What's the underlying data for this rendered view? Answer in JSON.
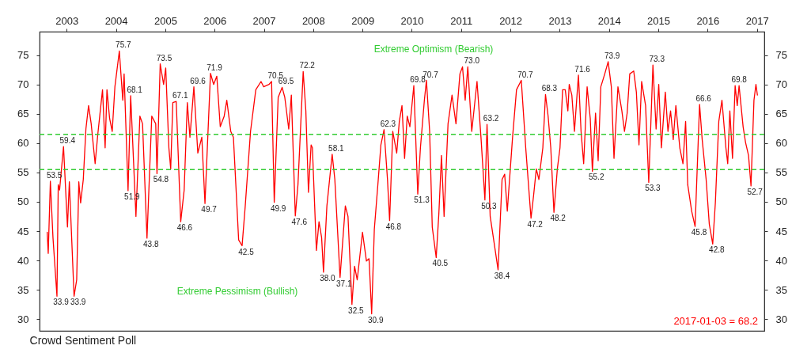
{
  "chart_data": {
    "type": "line",
    "title": "Crowd Sentiment Poll",
    "x": [
      2002.605,
      2002.626,
      2002.669,
      2002.722,
      2002.803,
      2002.829,
      2002.856,
      2002.936,
      2003.016,
      2003.054,
      2003.15,
      2003.203,
      2003.246,
      2003.283,
      2003.337,
      2003.39,
      2003.444,
      2003.497,
      2003.577,
      2003.631,
      2003.727,
      2003.78,
      2003.817,
      2003.871,
      2003.924,
      2003.978,
      2004.068,
      2004.138,
      2004.165,
      2004.245,
      2004.298,
      2004.405,
      2004.485,
      2004.539,
      2004.629,
      2004.726,
      2004.806,
      2004.832,
      2004.897,
      2004.966,
      2005.009,
      2005.073,
      2005.11,
      2005.153,
      2005.222,
      2005.313,
      2005.383,
      2005.447,
      2005.5,
      2005.58,
      2005.66,
      2005.741,
      2005.805,
      2005.917,
      2005.981,
      2006.045,
      2006.115,
      2006.195,
      2006.248,
      2006.328,
      2006.382,
      2006.488,
      2006.558,
      2006.622,
      2006.729,
      2006.836,
      2006.942,
      2006.996,
      2007.103,
      2007.156,
      2007.21,
      2007.29,
      2007.37,
      2007.424,
      2007.504,
      2007.557,
      2007.637,
      2007.691,
      2007.797,
      2007.851,
      2007.904,
      2007.958,
      2007.984,
      2008.065,
      2008.118,
      2008.171,
      2008.209,
      2008.278,
      2008.385,
      2008.439,
      2008.545,
      2008.652,
      2008.706,
      2008.786,
      2008.839,
      2008.893,
      2009.0,
      2009.08,
      2009.133,
      2009.186,
      2009.24,
      2009.32,
      2009.373,
      2009.437,
      2009.507,
      2009.55,
      2009.614,
      2009.694,
      2009.747,
      2009.801,
      2009.854,
      2009.907,
      2009.961,
      2010.041,
      2010.121,
      2010.175,
      2010.255,
      2010.297,
      2010.362,
      2010.415,
      2010.495,
      2010.549,
      2010.602,
      2010.655,
      2010.735,
      2010.816,
      2010.896,
      2010.976,
      2011.029,
      2011.083,
      2011.136,
      2011.216,
      2011.323,
      2011.403,
      2011.483,
      2011.526,
      2011.59,
      2011.67,
      2011.75,
      2011.831,
      2011.884,
      2011.937,
      2012.044,
      2012.124,
      2012.221,
      2012.311,
      2012.391,
      2012.418,
      2012.471,
      2012.525,
      2012.578,
      2012.658,
      2012.712,
      2012.765,
      2012.819,
      2012.883,
      2012.952,
      2013.006,
      2013.059,
      2013.112,
      2013.166,
      2013.193,
      2013.246,
      2013.299,
      2013.38,
      2013.433,
      2013.486,
      2013.556,
      2013.62,
      2013.663,
      2013.727,
      2013.78,
      2013.834,
      2013.914,
      2013.983,
      2014.047,
      2014.101,
      2014.181,
      2014.261,
      2014.314,
      2014.368,
      2014.421,
      2014.501,
      2014.555,
      2014.608,
      2014.662,
      2014.742,
      2014.806,
      2014.891,
      2014.955,
      2015.009,
      2015.062,
      2015.142,
      2015.196,
      2015.249,
      2015.303,
      2015.356,
      2015.436,
      2015.5,
      2015.554,
      2015.597,
      2015.677,
      2015.746,
      2015.837,
      2015.89,
      2015.97,
      2016.034,
      2016.104,
      2016.157,
      2016.227,
      2016.291,
      2016.371,
      2016.408,
      2016.451,
      2016.505,
      2016.558,
      2016.601,
      2016.638,
      2016.72,
      2016.77,
      2016.83,
      2016.88,
      2016.94,
      2016.98,
      2017.01
    ],
    "series": [
      {
        "color": "#ff0000",
        "values": [
          44.8,
          41.2,
          53.5,
          43.9,
          33.9,
          52.9,
          52.0,
          59.4,
          45.7,
          53.4,
          33.9,
          36.7,
          53.4,
          49.8,
          53.8,
          62.4,
          66.4,
          63.3,
          56.5,
          61.5,
          69.1,
          59.2,
          69.1,
          64.2,
          62.0,
          69.6,
          75.7,
          67.3,
          71.8,
          51.9,
          68.1,
          47.5,
          64.6,
          63.3,
          43.8,
          64.6,
          63.3,
          54.8,
          73.5,
          70.0,
          72.8,
          59.2,
          55.6,
          66.9,
          67.1,
          46.6,
          52.0,
          66.9,
          61.0,
          69.6,
          58.3,
          61.0,
          49.7,
          71.9,
          70.0,
          71.4,
          62.8,
          64.6,
          67.3,
          62.0,
          61.0,
          43.5,
          42.5,
          49.3,
          62.0,
          69.1,
          70.5,
          69.6,
          70.0,
          70.5,
          49.9,
          67.8,
          69.5,
          67.8,
          62.4,
          68.2,
          47.6,
          52.9,
          72.2,
          65.5,
          51.6,
          59.7,
          59.2,
          41.7,
          46.6,
          43.9,
          38.0,
          49.3,
          58.1,
          53.8,
          37.1,
          49.3,
          47.5,
          32.5,
          39.0,
          36.7,
          44.8,
          39.9,
          40.3,
          30.9,
          45.3,
          53.8,
          59.7,
          62.3,
          53.8,
          46.8,
          62.0,
          58.3,
          63.7,
          66.4,
          57.4,
          64.6,
          62.8,
          69.8,
          51.3,
          59.2,
          67.3,
          70.7,
          62.0,
          45.7,
          40.5,
          48.0,
          57.9,
          47.5,
          63.3,
          68.2,
          63.3,
          71.8,
          73.0,
          67.3,
          73.0,
          62.0,
          70.5,
          61.0,
          50.3,
          63.2,
          47.5,
          43.0,
          38.4,
          53.8,
          54.7,
          48.4,
          61.0,
          69.1,
          70.7,
          59.2,
          50.2,
          47.2,
          51.1,
          55.6,
          53.8,
          59.2,
          68.3,
          64.6,
          59.2,
          48.2,
          55.6,
          59.2,
          69.1,
          69.1,
          65.5,
          70.0,
          68.2,
          62.0,
          71.6,
          62.0,
          56.5,
          69.6,
          64.2,
          55.2,
          65.1,
          57.0,
          69.6,
          71.8,
          73.9,
          69.6,
          57.4,
          69.6,
          65.5,
          62.0,
          65.1,
          71.8,
          72.3,
          68.7,
          59.7,
          70.5,
          66.4,
          53.3,
          73.3,
          62.4,
          70.0,
          59.2,
          68.7,
          62.0,
          65.5,
          60.6,
          66.4,
          59.2,
          56.5,
          63.7,
          52.9,
          48.4,
          45.8,
          66.6,
          60.6,
          53.8,
          46.2,
          42.8,
          49.8,
          63.7,
          67.3,
          59.2,
          56.5,
          65.5,
          57.4,
          69.8,
          66.4,
          69.8,
          62.8,
          60.1,
          57.9,
          52.7,
          67.3,
          70.0,
          68.2
        ]
      }
    ],
    "xlim": [
      2002.45,
      2017.15
    ],
    "xticks": [
      2003,
      2004,
      2005,
      2006,
      2007,
      2008,
      2009,
      2010,
      2011,
      2012,
      2013,
      2014,
      2015,
      2016,
      2017
    ],
    "ylim": [
      28,
      79
    ],
    "yticks": [
      30,
      35,
      40,
      45,
      50,
      55,
      60,
      65,
      70,
      75
    ],
    "y2lim": [
      28,
      79
    ],
    "y2ticks": [
      30,
      35,
      40,
      45,
      50,
      55,
      60,
      65,
      70,
      75
    ],
    "ref_lines": [
      {
        "axis": "y",
        "value": 61.5,
        "label": "Extreme Optimism (Bearish)",
        "color": "#33cc33",
        "line_style": "dashed"
      },
      {
        "axis": "y",
        "value": 55.5,
        "label": "Extreme Pessimism (Bullish)",
        "color": "#33cc33",
        "line_style": "dashed"
      }
    ],
    "annotations": [
      {
        "text": "53.5",
        "x": 2002.669,
        "y": 53.5
      },
      {
        "text": "33.9",
        "x": 2002.803,
        "y": 33.9
      },
      {
        "text": "59.4",
        "x": 2002.936,
        "y": 59.4
      },
      {
        "text": "33.9",
        "x": 2003.15,
        "y": 33.9
      },
      {
        "text": "75.7",
        "x": 2004.068,
        "y": 75.7
      },
      {
        "text": "51.9",
        "x": 2004.245,
        "y": 51.9
      },
      {
        "text": "68.1",
        "x": 2004.298,
        "y": 68.1
      },
      {
        "text": "43.8",
        "x": 2004.629,
        "y": 43.8
      },
      {
        "text": "54.8",
        "x": 2004.832,
        "y": 54.8
      },
      {
        "text": "73.5",
        "x": 2004.897,
        "y": 73.5
      },
      {
        "text": "67.1",
        "x": 2005.222,
        "y": 67.1
      },
      {
        "text": "46.6",
        "x": 2005.313,
        "y": 46.6
      },
      {
        "text": "69.6",
        "x": 2005.58,
        "y": 69.6
      },
      {
        "text": "49.7",
        "x": 2005.805,
        "y": 49.7
      },
      {
        "text": "71.9",
        "x": 2005.917,
        "y": 71.9
      },
      {
        "text": "42.5",
        "x": 2006.558,
        "y": 42.5
      },
      {
        "text": "70.5",
        "x": 2007.156,
        "y": 70.5
      },
      {
        "text": "49.9",
        "x": 2007.21,
        "y": 49.9
      },
      {
        "text": "69.5",
        "x": 2007.37,
        "y": 69.5
      },
      {
        "text": "47.6",
        "x": 2007.637,
        "y": 47.6
      },
      {
        "text": "72.2",
        "x": 2007.797,
        "y": 72.2
      },
      {
        "text": "38.0",
        "x": 2008.209,
        "y": 38.0
      },
      {
        "text": "58.1",
        "x": 2008.385,
        "y": 58.1
      },
      {
        "text": "37.1",
        "x": 2008.545,
        "y": 37.1
      },
      {
        "text": "32.5",
        "x": 2008.786,
        "y": 32.5
      },
      {
        "text": "30.9",
        "x": 2009.186,
        "y": 30.9
      },
      {
        "text": "62.3",
        "x": 2009.437,
        "y": 62.3
      },
      {
        "text": "46.8",
        "x": 2009.55,
        "y": 46.8
      },
      {
        "text": "69.8",
        "x": 2010.041,
        "y": 69.8
      },
      {
        "text": "51.3",
        "x": 2010.121,
        "y": 51.3
      },
      {
        "text": "70.7",
        "x": 2010.297,
        "y": 70.7
      },
      {
        "text": "40.5",
        "x": 2010.495,
        "y": 40.5
      },
      {
        "text": "73.0",
        "x": 2011.136,
        "y": 73.0
      },
      {
        "text": "50.3",
        "x": 2011.483,
        "y": 50.3
      },
      {
        "text": "63.2",
        "x": 2011.526,
        "y": 63.2
      },
      {
        "text": "38.4",
        "x": 2011.75,
        "y": 38.4
      },
      {
        "text": "70.7",
        "x": 2012.221,
        "y": 70.7
      },
      {
        "text": "47.2",
        "x": 2012.418,
        "y": 47.2
      },
      {
        "text": "68.3",
        "x": 2012.712,
        "y": 68.3
      },
      {
        "text": "48.2",
        "x": 2012.883,
        "y": 48.2
      },
      {
        "text": "71.6",
        "x": 2013.38,
        "y": 71.6
      },
      {
        "text": "55.2",
        "x": 2013.663,
        "y": 55.2
      },
      {
        "text": "73.9",
        "x": 2013.983,
        "y": 73.9
      },
      {
        "text": "53.3",
        "x": 2014.806,
        "y": 53.3
      },
      {
        "text": "73.3",
        "x": 2014.891,
        "y": 73.3
      },
      {
        "text": "45.8",
        "x": 2015.746,
        "y": 45.8
      },
      {
        "text": "66.6",
        "x": 2015.837,
        "y": 66.6
      },
      {
        "text": "42.8",
        "x": 2016.104,
        "y": 42.8
      },
      {
        "text": "69.8",
        "x": 2016.558,
        "y": 69.8
      },
      {
        "text": "52.7",
        "x": 2016.88,
        "y": 52.7
      },
      "2017-01-03 = 68.2"
    ]
  }
}
